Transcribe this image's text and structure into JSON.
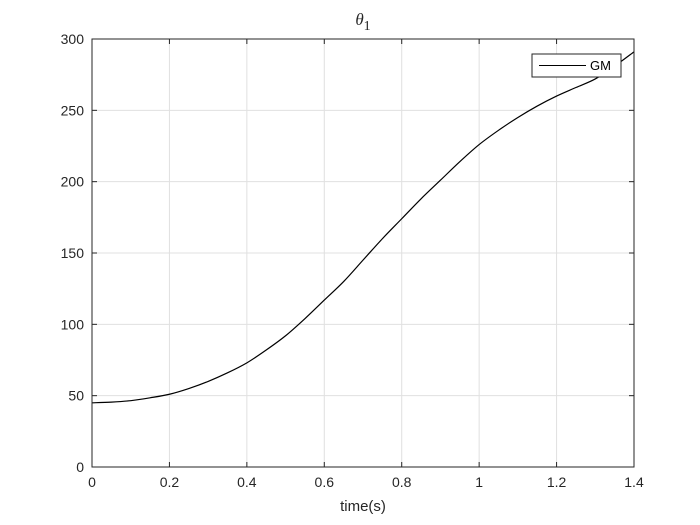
{
  "chart_data": {
    "type": "line",
    "title": {
      "symbol": "θ",
      "subscript": "1"
    },
    "xlabel": "time(s)",
    "ylabel": "",
    "xlim": [
      0,
      1.4
    ],
    "ylim": [
      0,
      300
    ],
    "xticks": [
      0,
      0.2,
      0.4,
      0.6,
      0.8,
      1,
      1.2,
      1.4
    ],
    "xtick_labels": [
      "0",
      "0.2",
      "0.4",
      "0.6",
      "0.8",
      "1",
      "1.2",
      "1.4"
    ],
    "yticks": [
      0,
      50,
      100,
      150,
      200,
      250,
      300
    ],
    "ytick_labels": [
      "0",
      "50",
      "100",
      "150",
      "200",
      "250",
      "300"
    ],
    "grid": true,
    "legend_position": "top-right",
    "series": [
      {
        "name": "GM",
        "color": "#000000",
        "x": [
          0,
          0.05,
          0.1,
          0.15,
          0.2,
          0.25,
          0.3,
          0.35,
          0.4,
          0.45,
          0.5,
          0.55,
          0.6,
          0.65,
          0.7,
          0.75,
          0.8,
          0.85,
          0.9,
          0.95,
          1.0,
          1.05,
          1.1,
          1.15,
          1.2,
          1.25,
          1.3,
          1.35,
          1.4
        ],
        "y": [
          45,
          45.5,
          46.5,
          48.5,
          51,
          55,
          60,
          66,
          73,
          82,
          92,
          104,
          117,
          130,
          145,
          160,
          174,
          188,
          201,
          214,
          226,
          236,
          245,
          253,
          260,
          266,
          272,
          281,
          291
        ]
      }
    ]
  }
}
